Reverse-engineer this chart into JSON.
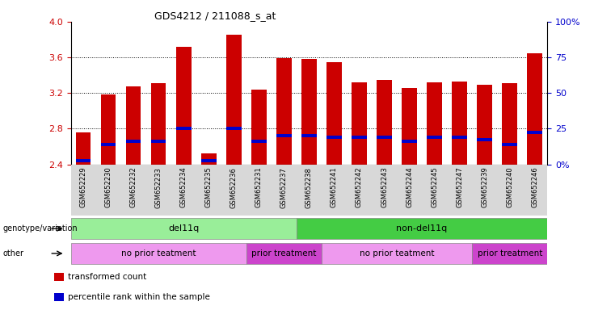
{
  "title": "GDS4212 / 211088_s_at",
  "samples": [
    "GSM652229",
    "GSM652230",
    "GSM652232",
    "GSM652233",
    "GSM652234",
    "GSM652235",
    "GSM652236",
    "GSM652231",
    "GSM652237",
    "GSM652238",
    "GSM652241",
    "GSM652242",
    "GSM652243",
    "GSM652244",
    "GSM652245",
    "GSM652247",
    "GSM652239",
    "GSM652240",
    "GSM652246"
  ],
  "bar_heights": [
    2.76,
    3.18,
    3.27,
    3.31,
    3.72,
    2.52,
    3.85,
    3.24,
    3.59,
    3.58,
    3.55,
    3.32,
    3.35,
    3.26,
    3.32,
    3.33,
    3.29,
    3.31,
    3.65
  ],
  "blue_markers": [
    2.44,
    2.62,
    2.66,
    2.66,
    2.8,
    2.44,
    2.8,
    2.66,
    2.72,
    2.72,
    2.7,
    2.7,
    2.7,
    2.66,
    2.7,
    2.7,
    2.68,
    2.62,
    2.76
  ],
  "bar_color": "#cc0000",
  "blue_color": "#0000cc",
  "ylim_left": [
    2.4,
    4.0
  ],
  "yticks_left": [
    2.4,
    2.8,
    3.2,
    3.6,
    4.0
  ],
  "ylim_right": [
    0,
    100
  ],
  "yticks_right": [
    0,
    25,
    50,
    75,
    100
  ],
  "bar_width": 0.6,
  "groups": {
    "genotype": [
      {
        "label": "del11q",
        "start": 0,
        "end": 9,
        "color": "#99ee99"
      },
      {
        "label": "non-del11q",
        "start": 9,
        "end": 19,
        "color": "#44cc44"
      }
    ],
    "other": [
      {
        "label": "no prior teatment",
        "start": 0,
        "end": 7,
        "color": "#ee99ee"
      },
      {
        "label": "prior treatment",
        "start": 7,
        "end": 10,
        "color": "#cc44cc"
      },
      {
        "label": "no prior teatment",
        "start": 10,
        "end": 16,
        "color": "#ee99ee"
      },
      {
        "label": "prior treatment",
        "start": 16,
        "end": 19,
        "color": "#cc44cc"
      }
    ]
  },
  "legend_items": [
    {
      "label": "transformed count",
      "color": "#cc0000"
    },
    {
      "label": "percentile rank within the sample",
      "color": "#0000cc"
    }
  ],
  "background_color": "#ffffff",
  "label_color_left": "#cc0000",
  "label_color_right": "#0000cc"
}
